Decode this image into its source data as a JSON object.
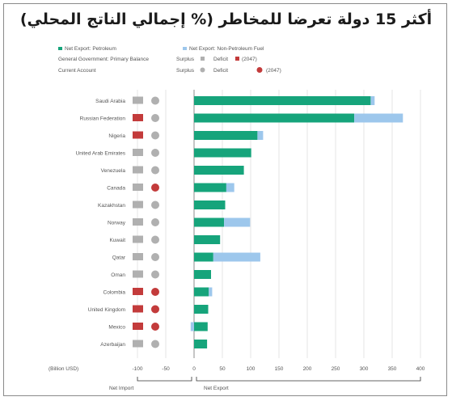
{
  "title": "أكثر 15 دولة تعرضا للمخاطر (% إجمالي الناتج المحلي)",
  "legend": {
    "series": [
      {
        "label": "Net Export: Petroleum",
        "color": "#16a47b"
      },
      {
        "label": "Net Export: Non-Petroleum Fuel",
        "color": "#9dc7ec"
      }
    ],
    "indicators": [
      {
        "label": "General Government: Primary Balance",
        "surplus_label": "Surplus",
        "deficit_label": "Deficit",
        "deficit_note": "(2047)",
        "shape": "square"
      },
      {
        "label": "Current Account",
        "surplus_label": "Surplus",
        "deficit_label": "Deficit",
        "deficit_note": "(2047)",
        "shape": "circle"
      }
    ],
    "surplus_color": "#b0b0b0",
    "deficit_color": "#c33b3b"
  },
  "axis_note": "(Billion USD)",
  "net_import_label": "Net Import",
  "net_export_label": "Net Export",
  "chart_data": {
    "type": "bar",
    "orientation": "horizontal",
    "stacked": true,
    "categories": [
      "Saudi Arabia",
      "Russian Federation",
      "Nigeria",
      "United Arab Emirates",
      "Venezuela",
      "Canada",
      "Kazakhstan",
      "Norway",
      "Kuwait",
      "Qatar",
      "Oman",
      "Colombia",
      "United Kingdom",
      "Mexico",
      "Azerbaijan"
    ],
    "series": [
      {
        "name": "Net Export: Petroleum",
        "values": [
          312,
          283,
          112,
          101,
          88,
          57,
          55,
          53,
          46,
          34,
          30,
          26,
          25,
          24,
          23
        ]
      },
      {
        "name": "Net Export: Non-Petroleum Fuel",
        "values": [
          7,
          86,
          10,
          0,
          0,
          14,
          0,
          46,
          0,
          83,
          0,
          6,
          0,
          -6,
          0
        ]
      }
    ],
    "primary_balance": [
      "surplus",
      "deficit",
      "deficit",
      "surplus",
      "surplus",
      "surplus",
      "surplus",
      "surplus",
      "surplus",
      "surplus",
      "surplus",
      "deficit",
      "deficit",
      "deficit",
      "surplus"
    ],
    "current_account": [
      "surplus",
      "surplus",
      "surplus",
      "surplus",
      "surplus",
      "deficit",
      "surplus",
      "surplus",
      "surplus",
      "surplus",
      "surplus",
      "deficit",
      "deficit",
      "deficit",
      "surplus"
    ],
    "xlim": [
      -100,
      400
    ],
    "xticks": [
      -100,
      -50,
      0,
      50,
      100,
      150,
      200,
      250,
      300,
      350,
      400
    ],
    "grid": true
  }
}
